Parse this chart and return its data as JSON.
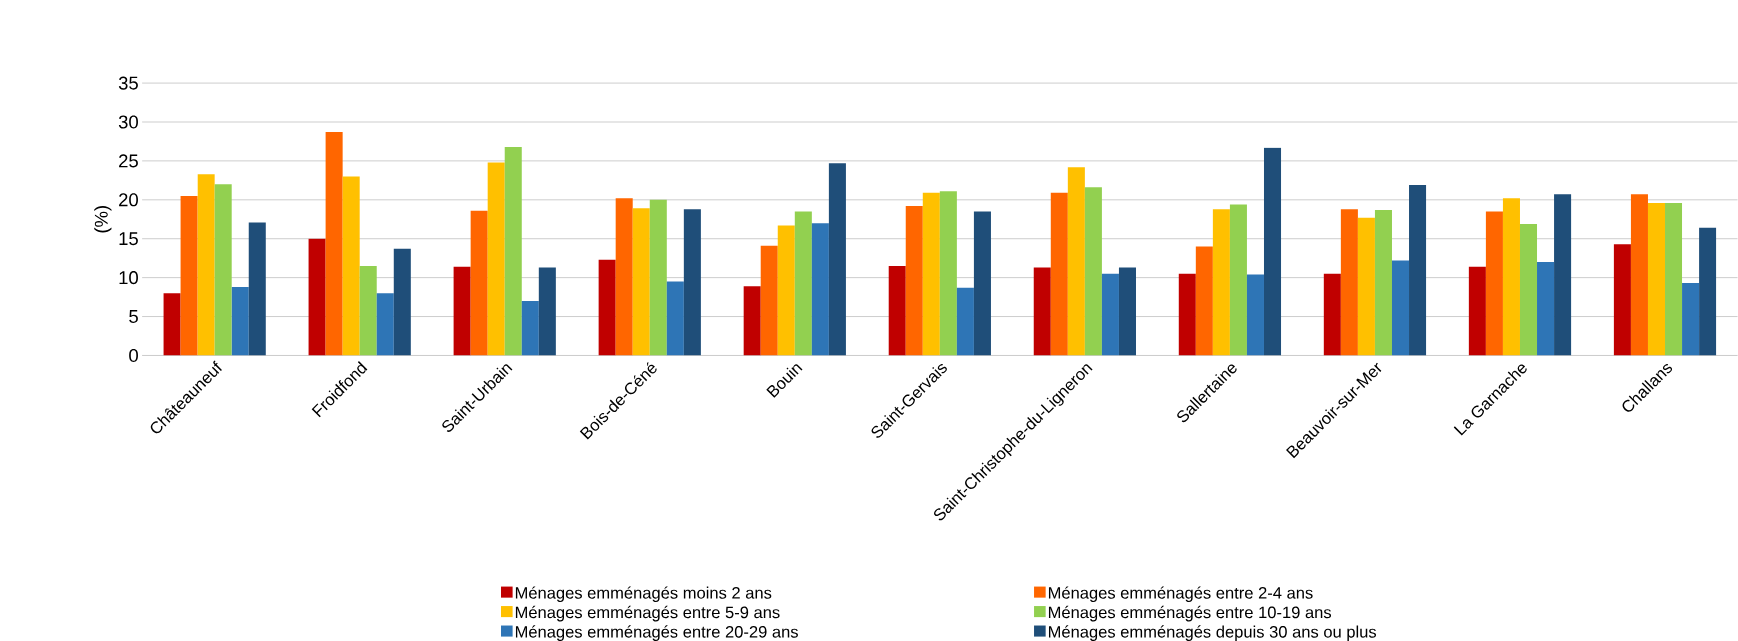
{
  "chart_data": {
    "type": "bar",
    "ylabel": "(%)",
    "categories": [
      "Châteauneuf",
      "Froidfond",
      "Saint-Urbain",
      "Bois-de-Céné",
      "Bouin",
      "Saint-Gervais",
      "Saint-Christophe-du-Ligneron",
      "Sallertaine",
      "Beauvoir-sur-Mer",
      "La Garnache",
      "Challans"
    ],
    "series": [
      {
        "name": "Ménages emménagés moins 2 ans",
        "color": "#c00000",
        "values": [
          8.0,
          15.0,
          11.4,
          12.3,
          8.9,
          11.5,
          11.3,
          10.5,
          10.5,
          11.4,
          14.3
        ]
      },
      {
        "name": "Ménages emménagés entre 2-4 ans",
        "color": "#ff6600",
        "values": [
          20.5,
          28.7,
          18.6,
          20.2,
          14.1,
          19.2,
          20.9,
          14.0,
          18.8,
          18.5,
          20.7
        ]
      },
      {
        "name": "Ménages emménagés entre 5-9 ans",
        "color": "#ffc000",
        "values": [
          23.3,
          23.0,
          24.8,
          18.9,
          16.7,
          20.9,
          24.2,
          18.8,
          17.7,
          20.2,
          19.6
        ]
      },
      {
        "name": "Ménages emménagés entre 10-19 ans",
        "color": "#92d050",
        "values": [
          22.0,
          11.5,
          26.8,
          20.0,
          18.5,
          21.1,
          21.6,
          19.4,
          18.7,
          16.9,
          19.6
        ]
      },
      {
        "name": "Ménages emménagés entre 20-29 ans",
        "color": "#2e75b6",
        "values": [
          8.8,
          8.0,
          7.0,
          9.5,
          17.0,
          8.7,
          10.5,
          10.4,
          12.2,
          12.0,
          9.3
        ]
      },
      {
        "name": "Ménages emménagés depuis 30 ans ou plus",
        "color": "#1f4e79",
        "values": [
          17.1,
          13.7,
          11.3,
          18.8,
          24.7,
          18.5,
          11.3,
          26.7,
          21.9,
          20.7,
          16.4
        ]
      }
    ],
    "ylim": [
      0,
      35
    ],
    "yticks": [
      0,
      5,
      10,
      15,
      20,
      25,
      30,
      35
    ],
    "grid": "y",
    "legend": "bottom"
  }
}
